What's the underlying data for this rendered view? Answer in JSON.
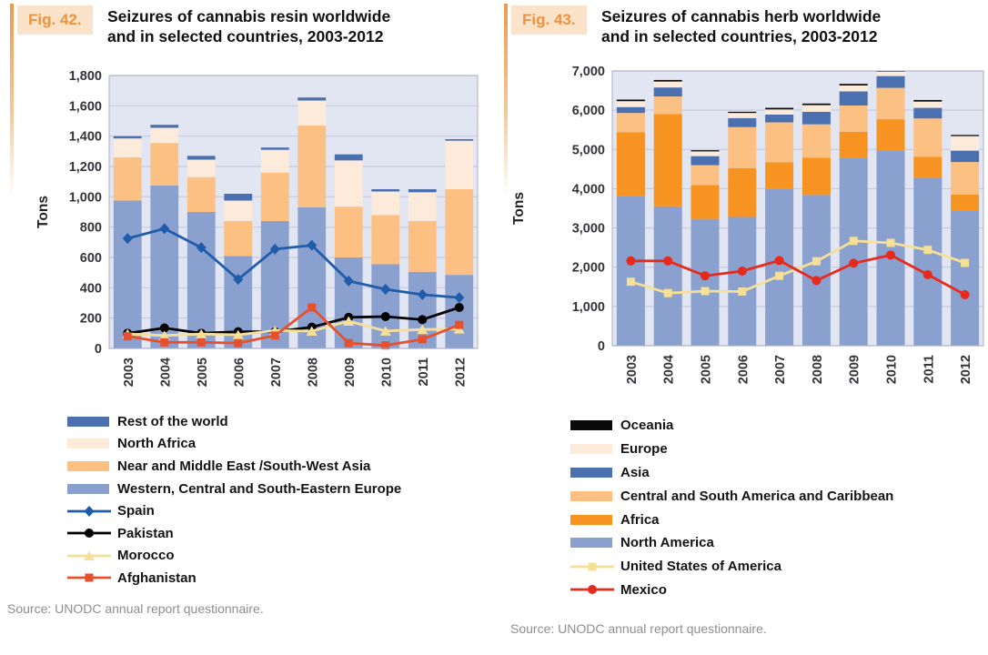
{
  "figures": [
    {
      "fig_label": "Fig. 42.",
      "title_line1": "Seizures of cannabis resin worldwide",
      "title_line2": "and in selected countries, 2003-2012",
      "ylabel": "Tons",
      "source": "Source: UNODC annual report questionnaire.",
      "accent_color": "#ED994E"
    },
    {
      "fig_label": "Fig. 43.",
      "title_line1": "Seizures of cannabis herb worldwide",
      "title_line2": "and in selected countries, 2003-2012",
      "ylabel": "Tons",
      "source": "Source: UNODC annual report questionnaire.",
      "accent_color": "#ED994E"
    }
  ],
  "chart_data": [
    {
      "type": "bar",
      "subtype": "stacked-bars-with-line-overlay",
      "title": "Seizures of cannabis resin worldwide and in selected countries, 2003-2012",
      "xlabel": "",
      "ylabel": "Tons",
      "ylim": [
        0,
        1800
      ],
      "y_step": 200,
      "grid": true,
      "legend_position": "bottom-left",
      "style": {
        "plot_bg": "#E2E5F2",
        "grid_color": "#C6CCE0",
        "border_color": "#ABAEC0"
      },
      "categories": [
        "2003",
        "2004",
        "2005",
        "2006",
        "2007",
        "2008",
        "2009",
        "2010",
        "2011",
        "2012"
      ],
      "bar_series": [
        {
          "name": "Western, Central and South-Eastern Europe",
          "color": "#8AA0CF",
          "values": [
            975,
            1075,
            900,
            610,
            840,
            930,
            600,
            555,
            505,
            485
          ]
        },
        {
          "name": "Near and Middle East /South-West Asia",
          "color": "#FCC083",
          "values": [
            285,
            280,
            230,
            230,
            320,
            540,
            335,
            325,
            335,
            565
          ]
        },
        {
          "name": "North Africa",
          "color": "#FCEADA",
          "values": [
            125,
            100,
            115,
            135,
            150,
            165,
            305,
            155,
            190,
            320
          ]
        },
        {
          "name": "Rest of the world",
          "color": "#4A70B0",
          "values": [
            15,
            20,
            25,
            45,
            15,
            20,
            40,
            15,
            20,
            10
          ]
        }
      ],
      "line_series": [
        {
          "name": "Spain",
          "color": "#1F5CA9",
          "marker": "diamond",
          "values": [
            725,
            790,
            665,
            455,
            655,
            680,
            445,
            390,
            355,
            335
          ]
        },
        {
          "name": "Pakistan",
          "color": "#000000",
          "marker": "circle",
          "values": [
            100,
            135,
            100,
            110,
            110,
            140,
            205,
            210,
            190,
            270
          ]
        },
        {
          "name": "Morocco",
          "color": "#F6DF9B",
          "marker": "triangle",
          "values": [
            95,
            85,
            95,
            90,
            118,
            114,
            180,
            115,
            125,
            128
          ]
        },
        {
          "name": "Afghanistan",
          "color": "#E5512F",
          "marker": "square",
          "values": [
            80,
            40,
            40,
            35,
            85,
            270,
            35,
            20,
            60,
            155
          ]
        }
      ],
      "legend_order": [
        "Rest of the world",
        "North Africa",
        "Near and Middle East /South-West Asia",
        "Western, Central and South-Eastern Europe",
        "Spain",
        "Pakistan",
        "Morocco",
        "Afghanistan"
      ]
    },
    {
      "type": "bar",
      "subtype": "stacked-bars-with-line-overlay",
      "title": "Seizures of cannabis herb worldwide and in selected countries, 2003-2012",
      "xlabel": "",
      "ylabel": "Tons",
      "ylim": [
        0,
        7000
      ],
      "y_step": 1000,
      "grid": true,
      "legend_position": "bottom-left",
      "style": {
        "plot_bg": "#E2E5F2",
        "grid_color": "#C6CCE0",
        "border_color": "#ABAEC0"
      },
      "categories": [
        "2003",
        "2004",
        "2005",
        "2006",
        "2007",
        "2008",
        "2009",
        "2010",
        "2011",
        "2012"
      ],
      "bar_series": [
        {
          "name": "North America",
          "color": "#8AA0CF",
          "values": [
            3820,
            3550,
            3230,
            3280,
            3990,
            3840,
            4790,
            4970,
            4290,
            3450
          ]
        },
        {
          "name": "Africa",
          "color": "#F79321",
          "values": [
            1620,
            2350,
            860,
            1240,
            680,
            950,
            660,
            800,
            520,
            400
          ]
        },
        {
          "name": "Central and South America and Caribbean",
          "color": "#FCC083",
          "values": [
            490,
            450,
            510,
            1050,
            1020,
            850,
            670,
            800,
            980,
            830
          ]
        },
        {
          "name": "Asia",
          "color": "#4A70B0",
          "values": [
            150,
            230,
            230,
            230,
            200,
            320,
            360,
            300,
            270,
            290
          ]
        },
        {
          "name": "Europe",
          "color": "#FCEADA",
          "values": [
            150,
            150,
            120,
            130,
            130,
            170,
            150,
            110,
            160,
            370
          ]
        },
        {
          "name": "Oceania",
          "color": "#0A0A0A",
          "values": [
            40,
            40,
            30,
            30,
            40,
            40,
            40,
            30,
            40,
            30
          ]
        }
      ],
      "line_series": [
        {
          "name": "United States of America",
          "color": "#F5E096",
          "marker": "square",
          "values": [
            1630,
            1340,
            1390,
            1380,
            1780,
            2150,
            2670,
            2620,
            2440,
            2110
          ]
        },
        {
          "name": "Mexico",
          "color": "#E62A1C",
          "marker": "circle",
          "values": [
            2160,
            2160,
            1780,
            1900,
            2170,
            1660,
            2100,
            2310,
            1810,
            1300
          ]
        }
      ],
      "legend_order": [
        "Oceania",
        "Europe",
        "Asia",
        "Central and South America and Caribbean",
        "Africa",
        "North America",
        "United States of America",
        "Mexico"
      ]
    }
  ]
}
